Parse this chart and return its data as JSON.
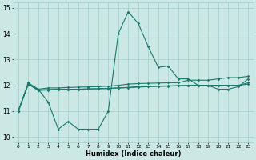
{
  "xlabel": "Humidex (Indice chaleur)",
  "x": [
    0,
    1,
    2,
    3,
    4,
    5,
    6,
    7,
    8,
    9,
    10,
    11,
    12,
    13,
    14,
    15,
    16,
    17,
    18,
    19,
    20,
    21,
    22,
    23
  ],
  "line1": [
    11.0,
    12.1,
    11.85,
    11.35,
    10.3,
    10.6,
    10.3,
    10.3,
    10.3,
    11.0,
    14.0,
    14.85,
    14.4,
    13.5,
    12.7,
    12.75,
    12.25,
    12.25,
    12.0,
    12.0,
    11.85,
    11.85,
    11.95,
    12.25
  ],
  "line2": [
    11.0,
    12.05,
    11.85,
    11.9,
    11.9,
    11.92,
    11.93,
    11.94,
    11.95,
    11.97,
    12.0,
    12.05,
    12.07,
    12.08,
    12.09,
    12.1,
    12.1,
    12.2,
    12.2,
    12.2,
    12.25,
    12.3,
    12.3,
    12.35
  ],
  "line3": [
    11.0,
    12.05,
    11.82,
    11.84,
    11.85,
    11.85,
    11.85,
    11.86,
    11.87,
    11.88,
    11.9,
    11.92,
    11.95,
    11.96,
    11.97,
    11.98,
    11.99,
    12.0,
    12.0,
    12.0,
    12.0,
    12.0,
    12.0,
    12.1
  ],
  "line4": [
    11.0,
    12.05,
    11.8,
    11.82,
    11.83,
    11.84,
    11.85,
    11.86,
    11.87,
    11.88,
    11.9,
    11.91,
    11.93,
    11.95,
    11.96,
    11.97,
    11.98,
    11.99,
    12.0,
    12.0,
    12.0,
    12.0,
    12.0,
    12.05
  ],
  "color": "#1a7a6e",
  "bg_color": "#cce8e5",
  "grid_color": "#9ecfca",
  "ylim": [
    9.8,
    15.2
  ],
  "xlim": [
    -0.5,
    23.5
  ],
  "yticks": [
    10,
    11,
    12,
    13,
    14,
    15
  ],
  "xticks": [
    0,
    1,
    2,
    3,
    4,
    5,
    6,
    7,
    8,
    9,
    10,
    11,
    12,
    13,
    14,
    15,
    16,
    17,
    18,
    19,
    20,
    21,
    22,
    23
  ]
}
